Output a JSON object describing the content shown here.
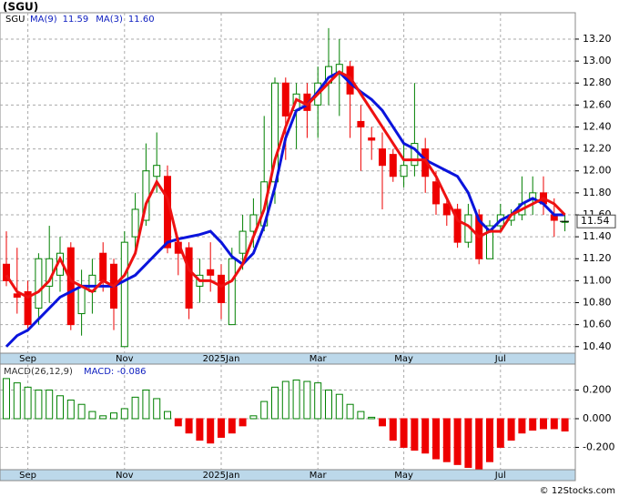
{
  "title": "(SGU)",
  "watermark": "© 12Stocks.com",
  "chart_data": [
    {
      "type": "candlestick",
      "legend_symbol": "SGU",
      "categories": [
        null,
        null,
        "Sep",
        null,
        null,
        null,
        null,
        null,
        null,
        null,
        null,
        "Nov",
        null,
        null,
        null,
        null,
        null,
        null,
        null,
        null,
        "2025Jan",
        null,
        null,
        null,
        null,
        null,
        null,
        null,
        null,
        "Mar",
        null,
        null,
        null,
        null,
        null,
        null,
        null,
        "May",
        null,
        null,
        null,
        null,
        null,
        null,
        null,
        null,
        "Jul",
        null,
        null,
        null,
        null,
        null,
        null
      ],
      "open": [
        11.15,
        10.88,
        10.9,
        10.75,
        10.95,
        11.05,
        11.3,
        10.7,
        10.9,
        11.25,
        11.15,
        10.4,
        11.4,
        11.55,
        11.95,
        11.95,
        11.35,
        11.3,
        10.95,
        11.1,
        11.05,
        10.6,
        11.25,
        11.45,
        11.5,
        11.9,
        12.8,
        12.55,
        12.7,
        12.6,
        12.8,
        12.9,
        12.95,
        12.45,
        12.3,
        12.2,
        12.15,
        11.95,
        12.05,
        12.2,
        11.9,
        11.7,
        11.65,
        11.35,
        11.6,
        11.2,
        11.5,
        11.55,
        11.6,
        11.75,
        11.8,
        11.6,
        11.54
      ],
      "high": [
        11.45,
        11.3,
        11.0,
        11.25,
        11.5,
        11.4,
        11.35,
        11.1,
        11.2,
        11.35,
        11.2,
        11.45,
        11.8,
        12.25,
        12.35,
        12.05,
        11.4,
        11.35,
        11.2,
        11.35,
        11.15,
        11.3,
        11.6,
        11.75,
        12.5,
        12.85,
        12.85,
        12.8,
        12.8,
        12.95,
        13.3,
        13.2,
        13.0,
        12.6,
        12.4,
        12.35,
        12.2,
        12.25,
        12.8,
        12.3,
        12.0,
        11.75,
        11.7,
        11.7,
        11.65,
        11.55,
        11.7,
        11.65,
        11.95,
        11.95,
        11.95,
        11.75,
        11.6
      ],
      "low": [
        10.95,
        10.7,
        10.55,
        10.6,
        10.8,
        10.9,
        10.55,
        10.5,
        10.7,
        10.9,
        10.55,
        10.4,
        11.25,
        11.5,
        11.8,
        11.25,
        11.05,
        10.65,
        10.8,
        10.9,
        10.65,
        10.6,
        11.1,
        11.3,
        11.45,
        11.7,
        12.1,
        12.2,
        12.3,
        12.3,
        12.6,
        12.5,
        12.3,
        12.0,
        12.1,
        11.65,
        11.9,
        11.85,
        11.95,
        11.8,
        11.6,
        11.5,
        11.3,
        11.3,
        11.15,
        11.2,
        11.45,
        11.5,
        11.55,
        11.6,
        11.6,
        11.4,
        11.45
      ],
      "close": [
        11.0,
        10.85,
        10.6,
        11.2,
        11.2,
        11.25,
        10.6,
        10.95,
        11.05,
        11.0,
        10.75,
        11.35,
        11.65,
        12.0,
        12.05,
        11.3,
        11.25,
        10.75,
        11.05,
        11.05,
        10.8,
        11.2,
        11.45,
        11.6,
        11.9,
        12.8,
        12.5,
        12.7,
        12.55,
        12.8,
        12.95,
        12.97,
        12.7,
        12.4,
        12.28,
        12.05,
        11.95,
        12.05,
        12.25,
        11.95,
        11.7,
        11.6,
        11.35,
        11.6,
        11.2,
        11.5,
        11.6,
        11.6,
        11.7,
        11.8,
        11.7,
        11.55,
        11.54
      ],
      "up_color": "#008000",
      "down_color": "#ee0000",
      "series": [
        {
          "name": "MA(9)",
          "legend_value": "11.59",
          "color": "#0a14dc",
          "values": [
            10.4,
            10.5,
            10.55,
            10.65,
            10.75,
            10.85,
            10.9,
            10.95,
            10.95,
            10.95,
            10.95,
            11.0,
            11.05,
            11.15,
            11.25,
            11.35,
            11.38,
            11.4,
            11.42,
            11.45,
            11.35,
            11.22,
            11.15,
            11.25,
            11.5,
            11.85,
            12.3,
            12.55,
            12.6,
            12.72,
            12.85,
            12.9,
            12.8,
            12.72,
            12.65,
            12.55,
            12.4,
            12.25,
            12.2,
            12.1,
            12.05,
            12.0,
            11.95,
            11.8,
            11.55,
            11.45,
            11.55,
            11.6,
            11.7,
            11.75,
            11.7,
            11.6,
            11.6
          ]
        },
        {
          "name": "MA(3)",
          "legend_value": "11.60",
          "color": "#ee1111",
          "values": [
            11.05,
            10.9,
            10.85,
            10.9,
            11.0,
            11.2,
            11.0,
            10.95,
            10.9,
            11.0,
            10.95,
            11.05,
            11.25,
            11.7,
            11.9,
            11.75,
            11.35,
            11.1,
            11.0,
            11.0,
            10.95,
            11.0,
            11.15,
            11.4,
            11.65,
            12.1,
            12.4,
            12.65,
            12.6,
            12.7,
            12.8,
            12.9,
            12.85,
            12.7,
            12.55,
            12.4,
            12.25,
            12.1,
            12.1,
            12.1,
            11.95,
            11.75,
            11.55,
            11.5,
            11.4,
            11.45,
            11.45,
            11.6,
            11.65,
            11.7,
            11.75,
            11.7,
            11.6
          ]
        }
      ],
      "last_price": 11.54,
      "ylim": [
        10.34,
        13.44
      ],
      "yticks": [
        {
          "value": 10.4,
          "label": "10.40"
        },
        {
          "value": 10.6,
          "label": "10.60"
        },
        {
          "value": 10.8,
          "label": "10.80"
        },
        {
          "value": 11.0,
          "label": "11.00"
        },
        {
          "value": 11.2,
          "label": "11.20"
        },
        {
          "value": 11.4,
          "label": "11.40"
        },
        {
          "value": 11.6,
          "label": "11.60"
        },
        {
          "value": 11.8,
          "label": "11.80"
        },
        {
          "value": 12.0,
          "label": "12.00"
        },
        {
          "value": 12.2,
          "label": "12.20"
        },
        {
          "value": 12.4,
          "label": "12.40"
        },
        {
          "value": 12.6,
          "label": "12.60"
        },
        {
          "value": 12.8,
          "label": "12.80"
        },
        {
          "value": 13.0,
          "label": "13.00"
        },
        {
          "value": 13.2,
          "label": "13.20"
        }
      ],
      "grid": true
    },
    {
      "type": "bar",
      "title": "MACD(26,12,9)",
      "value_name": "MACD:",
      "current": -0.086,
      "categories": [
        null,
        null,
        "Sep",
        null,
        null,
        null,
        null,
        null,
        null,
        null,
        null,
        "Nov",
        null,
        null,
        null,
        null,
        null,
        null,
        null,
        null,
        "2025Jan",
        null,
        null,
        null,
        null,
        null,
        null,
        null,
        null,
        "Mar",
        null,
        null,
        null,
        null,
        null,
        null,
        null,
        "May",
        null,
        null,
        null,
        null,
        null,
        null,
        null,
        null,
        "Jul",
        null,
        null,
        null,
        null,
        null,
        null
      ],
      "values": [
        0.28,
        0.25,
        0.22,
        0.2,
        0.2,
        0.16,
        0.13,
        0.1,
        0.05,
        0.02,
        0.04,
        0.07,
        0.15,
        0.2,
        0.14,
        0.05,
        -0.05,
        -0.1,
        -0.15,
        -0.17,
        -0.13,
        -0.1,
        -0.05,
        0.02,
        0.12,
        0.22,
        0.26,
        0.27,
        0.26,
        0.25,
        0.2,
        0.17,
        0.1,
        0.05,
        0.01,
        -0.05,
        -0.15,
        -0.2,
        -0.22,
        -0.24,
        -0.28,
        -0.3,
        -0.32,
        -0.34,
        -0.35,
        -0.3,
        -0.2,
        -0.15,
        -0.1,
        -0.08,
        -0.07,
        -0.07,
        -0.086
      ],
      "up_color": "#008000",
      "down_color": "#ee0000",
      "ylim": [
        -0.356,
        0.381
      ],
      "yticks": [
        {
          "value": -0.2,
          "label": "-0.200"
        },
        {
          "value": 0,
          "label": "0.000"
        },
        {
          "value": 0.2,
          "label": "0.200"
        }
      ],
      "grid": true
    }
  ]
}
